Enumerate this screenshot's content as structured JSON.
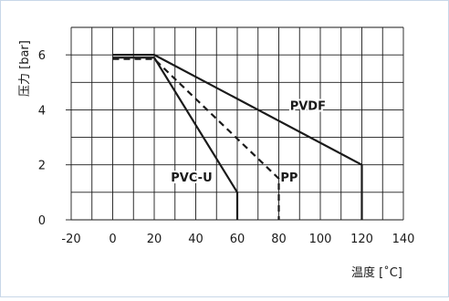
{
  "chart_data": {
    "type": "line",
    "xlabel": "温度 [˚C]",
    "ylabel": "压力 [bar]",
    "xlim": [
      -20,
      140
    ],
    "ylim": [
      0,
      7
    ],
    "x_ticks": [
      -20,
      0,
      20,
      40,
      60,
      80,
      100,
      120,
      140
    ],
    "y_ticks": [
      0,
      2,
      4,
      6
    ],
    "grid": true,
    "series": [
      {
        "name": "PVDF",
        "style": "solid",
        "points": [
          [
            0,
            6
          ],
          [
            20,
            6
          ],
          [
            120,
            2
          ],
          [
            120,
            0
          ]
        ]
      },
      {
        "name": "PP",
        "style": "dashed",
        "points": [
          [
            0,
            5.85
          ],
          [
            20,
            5.85
          ],
          [
            80,
            1.5
          ],
          [
            80,
            0
          ]
        ]
      },
      {
        "name": "PVC-U",
        "style": "solid",
        "points": [
          [
            0,
            5.9
          ],
          [
            20,
            5.9
          ],
          [
            60,
            1
          ],
          [
            60,
            0
          ]
        ]
      }
    ],
    "annotations": [
      {
        "text": "PVDF",
        "x": 94,
        "y": 4.0
      },
      {
        "text": "PP",
        "x": 85,
        "y": 1.4
      },
      {
        "text": "PVC-U",
        "x": 38,
        "y": 1.4
      }
    ]
  }
}
